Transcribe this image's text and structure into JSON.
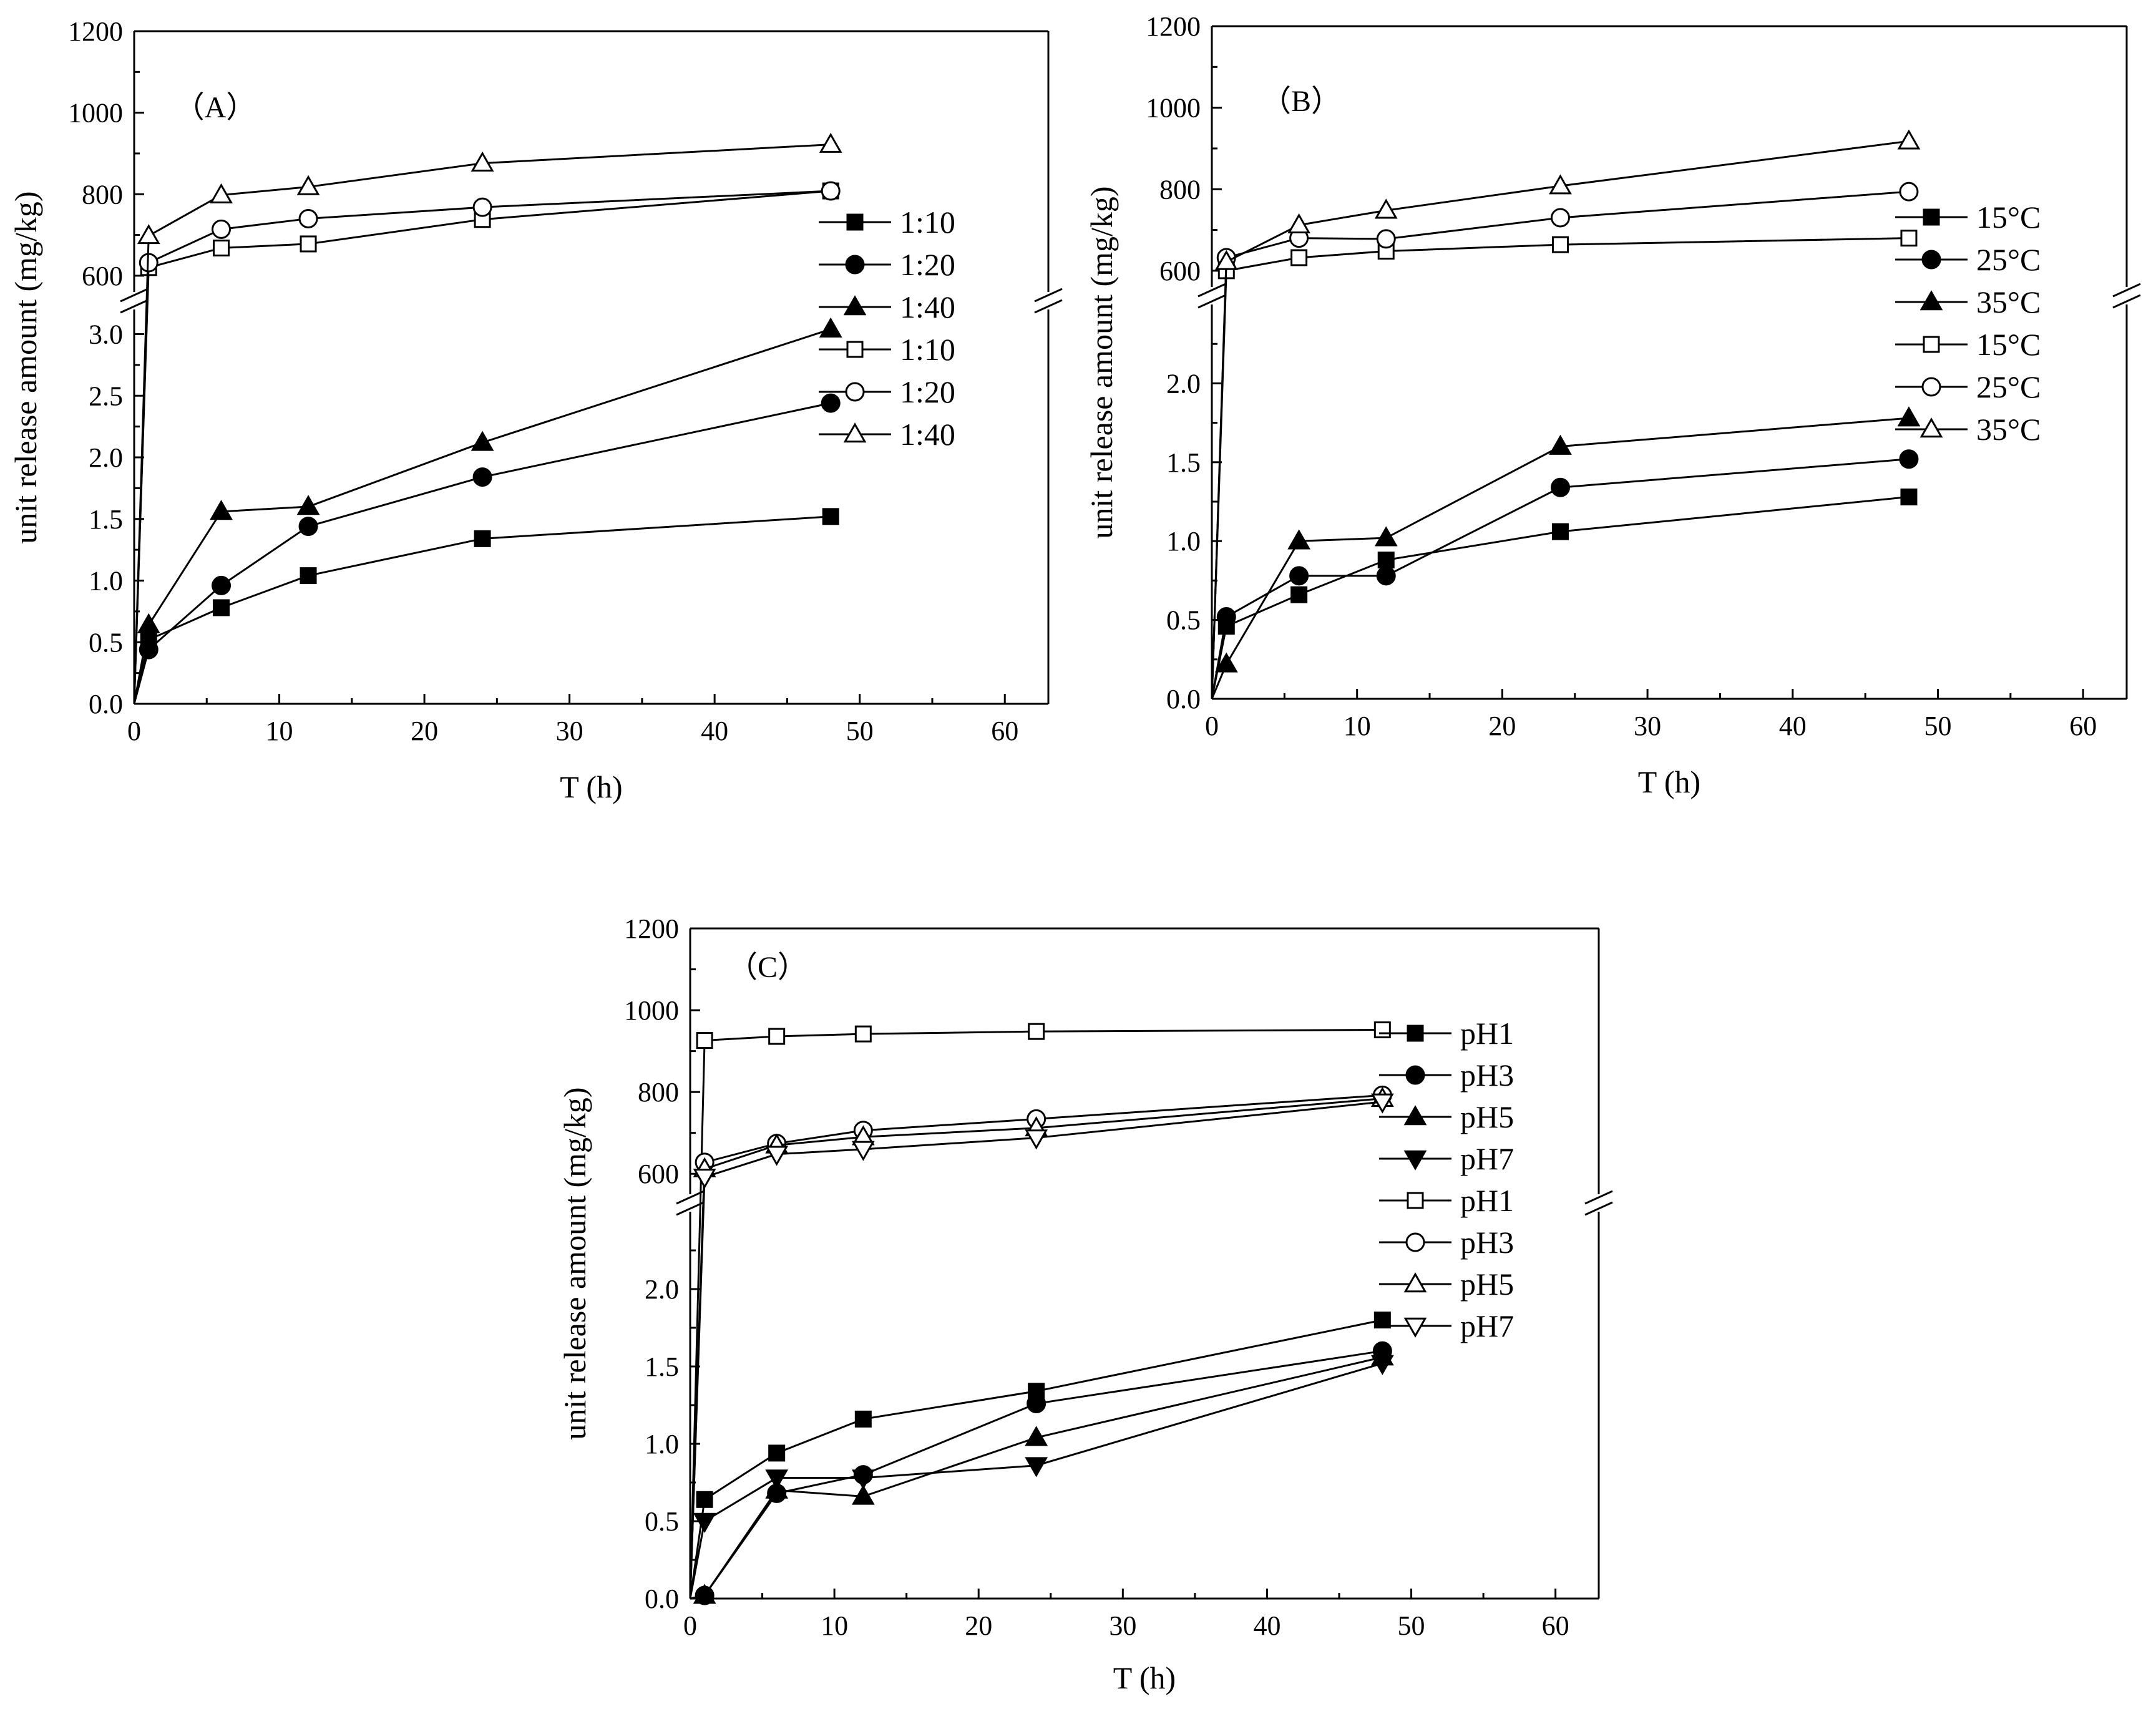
{
  "chart_data": [
    {
      "type": "line",
      "panel_label": "（A）",
      "xlabel": "T (h)",
      "ylabel": "unit release amount (mg/kg)",
      "xlim": [
        0,
        63
      ],
      "x_ticks": [
        "0",
        "10",
        "20",
        "30",
        "40",
        "50",
        "60"
      ],
      "y_axis_break": true,
      "upper_ylim": [
        560,
        1200
      ],
      "upper_ticks": [
        "600",
        "800",
        "1000",
        "1200"
      ],
      "lower_ylim": [
        0,
        3.2
      ],
      "lower_ticks": [
        "0.0",
        "0.5",
        "1.0",
        "1.5",
        "2.0",
        "2.5",
        "3.0"
      ],
      "legend_position": "right",
      "series": [
        {
          "name": "1:10",
          "marker": "square",
          "filled": true,
          "axis": "lower",
          "x": [
            0,
            1,
            6,
            12,
            24,
            48
          ],
          "values": [
            0,
            0.52,
            0.78,
            1.04,
            1.34,
            1.52
          ]
        },
        {
          "name": "1:20",
          "marker": "circle",
          "filled": true,
          "axis": "lower",
          "x": [
            0,
            1,
            6,
            12,
            24,
            48
          ],
          "values": [
            0,
            0.44,
            0.96,
            1.44,
            1.84,
            2.44
          ]
        },
        {
          "name": "1:40",
          "marker": "triangle-up",
          "filled": true,
          "axis": "lower",
          "x": [
            0,
            1,
            6,
            12,
            24,
            48
          ],
          "values": [
            0,
            0.64,
            1.56,
            1.6,
            2.12,
            3.04
          ]
        },
        {
          "name": "1:10",
          "marker": "square",
          "filled": false,
          "axis": "upper",
          "x": [
            0,
            1,
            6,
            12,
            24,
            48
          ],
          "values": [
            0,
            620,
            668,
            678,
            738,
            808
          ]
        },
        {
          "name": "1:20",
          "marker": "circle",
          "filled": false,
          "axis": "upper",
          "x": [
            0,
            1,
            6,
            12,
            24,
            48
          ],
          "values": [
            0,
            632,
            714,
            740,
            768,
            808
          ]
        },
        {
          "name": "1:40",
          "marker": "triangle-up",
          "filled": false,
          "axis": "upper",
          "x": [
            0,
            1,
            6,
            12,
            24,
            48
          ],
          "values": [
            0,
            698,
            798,
            818,
            876,
            922
          ]
        }
      ]
    },
    {
      "type": "line",
      "panel_label": "（B）",
      "xlabel": "T (h)",
      "ylabel": "unit release amount (mg/kg)",
      "xlim": [
        0,
        63
      ],
      "x_ticks": [
        "0",
        "10",
        "20",
        "30",
        "40",
        "50",
        "60"
      ],
      "y_axis_break": true,
      "upper_ylim": [
        560,
        1200
      ],
      "upper_ticks": [
        "600",
        "800",
        "1000",
        "1200"
      ],
      "lower_ylim": [
        0,
        2.5
      ],
      "lower_ticks": [
        "0.0",
        "0.5",
        "1.0",
        "1.5",
        "2.0"
      ],
      "legend_position": "right",
      "series": [
        {
          "name": "15°C",
          "marker": "square",
          "filled": true,
          "axis": "lower",
          "x": [
            0,
            1,
            6,
            12,
            24,
            48
          ],
          "values": [
            0,
            0.46,
            0.66,
            0.88,
            1.06,
            1.28
          ]
        },
        {
          "name": "25°C",
          "marker": "circle",
          "filled": true,
          "axis": "lower",
          "x": [
            0,
            1,
            6,
            12,
            24,
            48
          ],
          "values": [
            0,
            0.52,
            0.78,
            0.78,
            1.34,
            1.52
          ]
        },
        {
          "name": "35°C",
          "marker": "triangle-up",
          "filled": true,
          "axis": "lower",
          "x": [
            0,
            1,
            6,
            12,
            24,
            48
          ],
          "values": [
            0,
            0.22,
            1.0,
            1.02,
            1.6,
            1.78
          ]
        },
        {
          "name": "15°C",
          "marker": "square",
          "filled": false,
          "axis": "upper",
          "x": [
            0,
            1,
            6,
            12,
            24,
            48
          ],
          "values": [
            0,
            600,
            632,
            648,
            664,
            680
          ]
        },
        {
          "name": "25°C",
          "marker": "circle",
          "filled": false,
          "axis": "upper",
          "x": [
            0,
            1,
            6,
            12,
            24,
            48
          ],
          "values": [
            0,
            632,
            680,
            678,
            730,
            794
          ]
        },
        {
          "name": "35°C",
          "marker": "triangle-up",
          "filled": false,
          "axis": "upper",
          "x": [
            0,
            1,
            6,
            12,
            24,
            48
          ],
          "values": [
            0,
            622,
            712,
            748,
            808,
            918
          ]
        }
      ]
    },
    {
      "type": "line",
      "panel_label": "（C）",
      "xlabel": "T (h)",
      "ylabel": "unit release amount (mg/kg)",
      "xlim": [
        0,
        63
      ],
      "x_ticks": [
        "0",
        "10",
        "20",
        "30",
        "40",
        "50",
        "60"
      ],
      "y_axis_break": true,
      "upper_ylim": [
        550,
        1200
      ],
      "upper_ticks": [
        "600",
        "800",
        "1000",
        "1200"
      ],
      "lower_ylim": [
        0,
        2.5
      ],
      "lower_ticks": [
        "0.0",
        "0.5",
        "1.0",
        "1.5",
        "2.0"
      ],
      "legend_position": "right",
      "series": [
        {
          "name": "pH1",
          "marker": "square",
          "filled": true,
          "axis": "lower",
          "x": [
            0,
            1,
            6,
            12,
            24,
            48
          ],
          "values": [
            0,
            0.64,
            0.94,
            1.16,
            1.34,
            1.8
          ]
        },
        {
          "name": "pH3",
          "marker": "circle",
          "filled": true,
          "axis": "lower",
          "x": [
            0,
            1,
            6,
            12,
            24,
            48
          ],
          "values": [
            0,
            0.02,
            0.68,
            0.8,
            1.26,
            1.6
          ]
        },
        {
          "name": "pH5",
          "marker": "triangle-up",
          "filled": true,
          "axis": "lower",
          "x": [
            0,
            1,
            6,
            12,
            24,
            48
          ],
          "values": [
            0,
            0.02,
            0.7,
            0.66,
            1.04,
            1.56
          ]
        },
        {
          "name": "pH7",
          "marker": "triangle-down",
          "filled": true,
          "axis": "lower",
          "x": [
            0,
            1,
            6,
            12,
            24,
            48
          ],
          "values": [
            0,
            0.5,
            0.78,
            0.78,
            0.86,
            1.52
          ]
        },
        {
          "name": "pH1",
          "marker": "square",
          "filled": false,
          "axis": "upper",
          "x": [
            0,
            1,
            6,
            12,
            24,
            48
          ],
          "values": [
            0,
            926,
            936,
            942,
            948,
            952
          ]
        },
        {
          "name": "pH3",
          "marker": "circle",
          "filled": false,
          "axis": "upper",
          "x": [
            0,
            1,
            6,
            12,
            24,
            48
          ],
          "values": [
            0,
            628,
            674,
            706,
            734,
            792
          ]
        },
        {
          "name": "pH5",
          "marker": "triangle-up",
          "filled": false,
          "axis": "upper",
          "x": [
            0,
            1,
            6,
            12,
            24,
            48
          ],
          "values": [
            0,
            612,
            670,
            690,
            712,
            784
          ]
        },
        {
          "name": "pH7",
          "marker": "triangle-down",
          "filled": false,
          "axis": "upper",
          "x": [
            0,
            1,
            6,
            12,
            24,
            48
          ],
          "values": [
            0,
            592,
            648,
            660,
            688,
            776
          ]
        }
      ]
    }
  ]
}
